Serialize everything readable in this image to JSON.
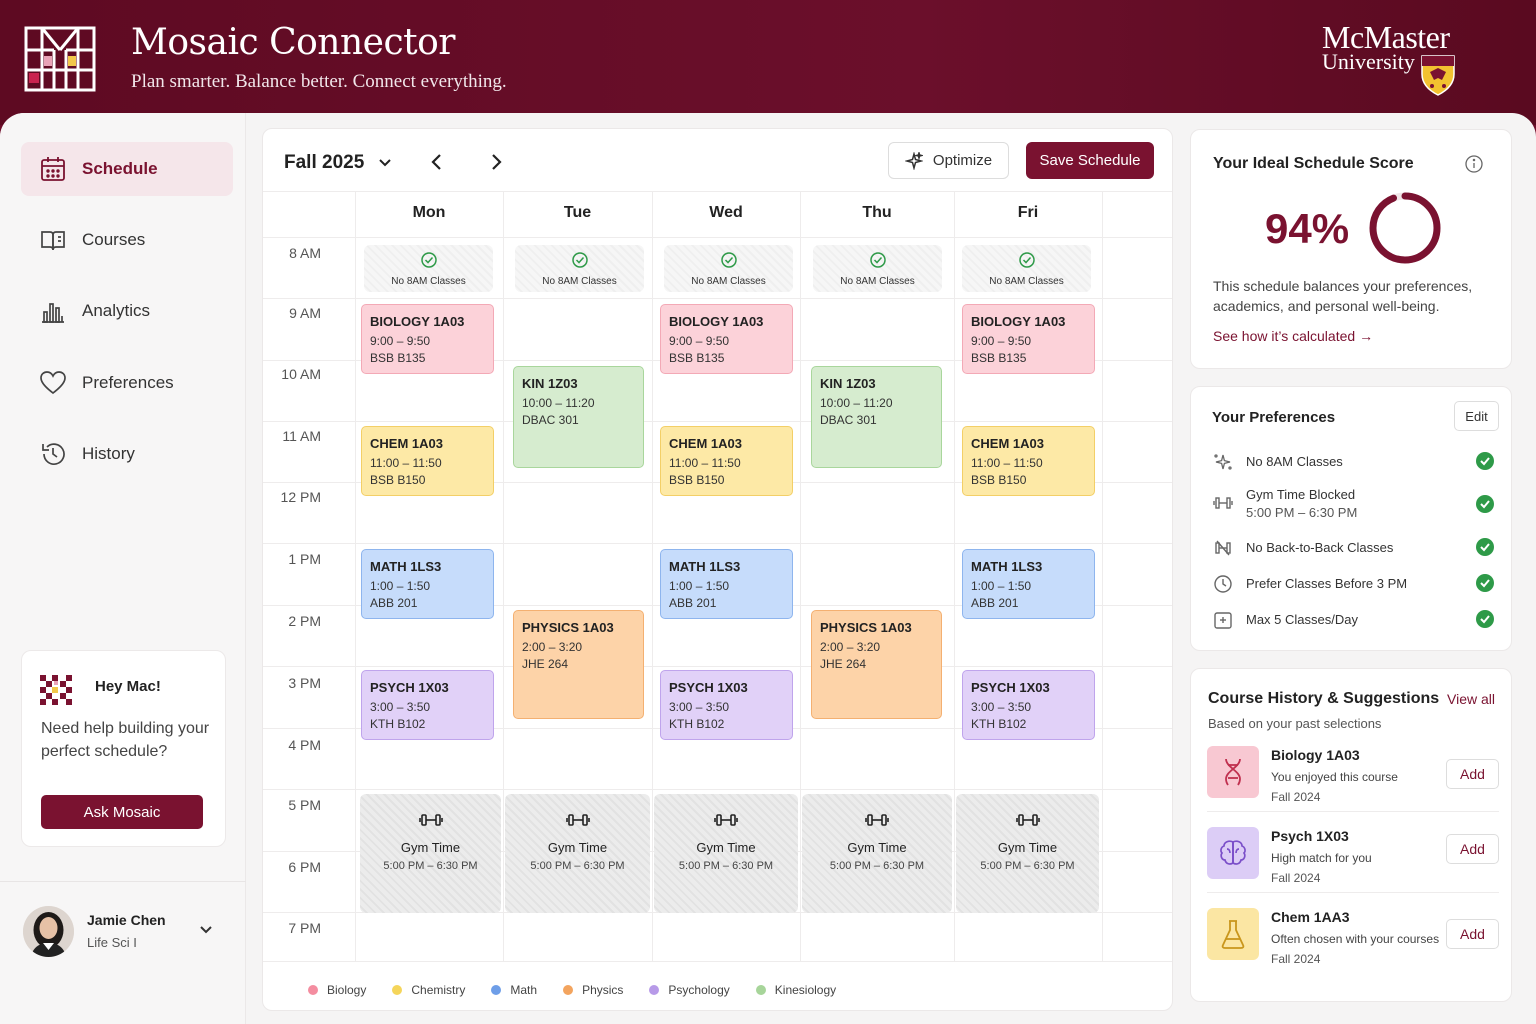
{
  "header": {
    "title": "Mosaic Connector",
    "tagline": "Plan smarter. Balance better. Connect everything.",
    "university_line1": "McMaster",
    "university_line2": "University"
  },
  "sidebar": {
    "items": [
      {
        "label": "Schedule",
        "icon": "calendar-icon",
        "active": true
      },
      {
        "label": "Courses",
        "icon": "book-icon"
      },
      {
        "label": "Analytics",
        "icon": "bar-chart-icon"
      },
      {
        "label": "Preferences",
        "icon": "heart-icon"
      },
      {
        "label": "History",
        "icon": "history-icon"
      }
    ],
    "help": {
      "greeting": "Hey Mac!",
      "text": "Need help building your perfect schedule?",
      "button": "Ask Mosaic"
    },
    "user": {
      "name": "Jamie Chen",
      "program": "Life Sci I"
    }
  },
  "calendar": {
    "term": "Fall 2025",
    "optimize_label": "Optimize",
    "save_label": "Save Schedule",
    "days": [
      "Mon",
      "Tue",
      "Wed",
      "Thu",
      "Fri"
    ],
    "times": [
      "8 AM",
      "9 AM",
      "10 AM",
      "11 AM",
      "12 PM",
      "1 PM",
      "2 PM",
      "3 PM",
      "4 PM",
      "5 PM",
      "6 PM",
      "7 PM"
    ],
    "no8_label": "No 8AM Classes",
    "gym": {
      "title": "Gym Time",
      "hours": "5:00 PM – 6:30 PM"
    },
    "courses": {
      "bio": {
        "code": "BIOLOGY 1A03",
        "time": "9:00 – 9:50",
        "room": "BSB B135"
      },
      "chem": {
        "code": "CHEM 1A03",
        "time": "11:00 – 11:50",
        "room": "BSB B150"
      },
      "math": {
        "code": "MATH 1LS3",
        "time": "1:00 – 1:50",
        "room": "ABB 201"
      },
      "psych": {
        "code": "PSYCH 1X03",
        "time": "3:00 – 3:50",
        "room": "KTH B102"
      },
      "kin": {
        "code": "KIN 1Z03",
        "time": "10:00 – 11:20",
        "room": "DBAC 301"
      },
      "phys": {
        "code": "PHYSICS 1A03",
        "time": "2:00 – 3:20",
        "room": "JHE 264"
      }
    },
    "legend": [
      {
        "label": "Biology",
        "color": "#f48da0"
      },
      {
        "label": "Chemistry",
        "color": "#f5d55a"
      },
      {
        "label": "Math",
        "color": "#6e9ee8"
      },
      {
        "label": "Physics",
        "color": "#f3a45e"
      },
      {
        "label": "Psychology",
        "color": "#b79ae8"
      },
      {
        "label": "Kinesiology",
        "color": "#a7d59a"
      }
    ]
  },
  "score": {
    "title": "Your Ideal Schedule Score",
    "value": "94%",
    "value_number": 94,
    "description": "This schedule balances your preferences, academics, and personal well-being.",
    "link": "See how it’s calculated"
  },
  "preferences": {
    "title": "Your Preferences",
    "edit_label": "Edit",
    "items": [
      {
        "label": "No 8AM Classes",
        "sub": "",
        "icon": "sparkle-icon"
      },
      {
        "label": "Gym Time Blocked",
        "sub": "5:00 PM – 6:30 PM",
        "icon": "dumbbell-icon"
      },
      {
        "label": "No Back-to-Back Classes",
        "sub": "",
        "icon": "dumbbell-off-icon"
      },
      {
        "label": "Prefer Classes Before 3 PM",
        "sub": "",
        "icon": "clock-icon"
      },
      {
        "label": "Max 5 Classes/Day",
        "sub": "",
        "icon": "calendar-limit-icon"
      }
    ]
  },
  "history": {
    "title": "Course History & Suggestions",
    "view_all": "View all",
    "subtitle": "Based on your past selections",
    "add_label": "Add",
    "items": [
      {
        "name": "Biology 1A03",
        "reason": "You enjoyed this course",
        "term": "Fall 2024",
        "icon": "dna-icon",
        "color": "#f8c8d2"
      },
      {
        "name": "Psych 1X03",
        "reason": "High match for you",
        "term": "Fall 2024",
        "icon": "brain-icon",
        "color": "#dccdf6"
      },
      {
        "name": "Chem 1AA3",
        "reason": "Often chosen with your courses",
        "term": "Fall 2024",
        "icon": "flask-icon",
        "color": "#fbe6a3"
      }
    ]
  }
}
